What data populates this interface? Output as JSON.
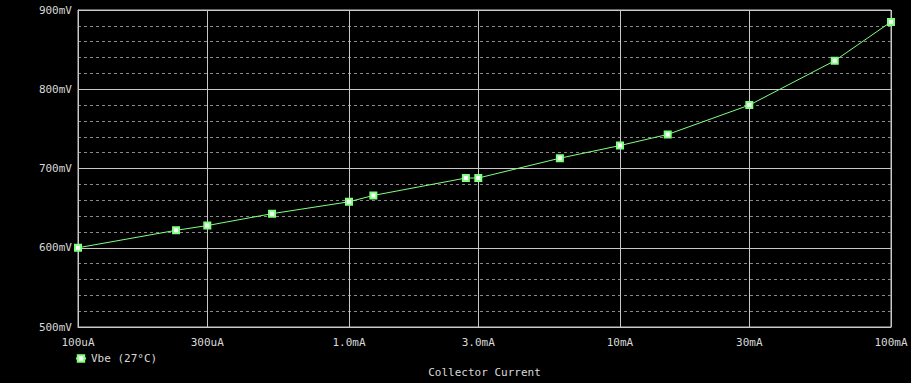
{
  "chart_data": {
    "type": "line",
    "x_label": "Collector Current",
    "x": [
      0.1,
      0.23,
      0.3,
      0.52,
      1.0,
      1.23,
      2.7,
      3.0,
      6.0,
      10,
      15,
      30,
      62,
      100
    ],
    "series": [
      {
        "name": "Vbe (27°C)",
        "color": "#80ff80",
        "marker": "square",
        "values": [
          600,
          622,
          628,
          643,
          658,
          666,
          688,
          688,
          713,
          729,
          743,
          780,
          836,
          885
        ]
      }
    ],
    "xlim": [
      0.1,
      100
    ],
    "xticks": [
      {
        "value": 0.1,
        "label": "100uA"
      },
      {
        "value": 0.3,
        "label": "300uA"
      },
      {
        "value": 1,
        "label": "1.0mA"
      },
      {
        "value": 3,
        "label": "3.0mA"
      },
      {
        "value": 10,
        "label": "10mA"
      },
      {
        "value": 30,
        "label": "30mA"
      },
      {
        "value": 100,
        "label": "100mA"
      }
    ],
    "ylim": [
      500,
      900
    ],
    "yticks": [
      {
        "value": 500,
        "label": "500mV"
      },
      {
        "value": 600,
        "label": "600mV"
      },
      {
        "value": 700,
        "label": "700mV"
      },
      {
        "value": 800,
        "label": "800mV"
      },
      {
        "value": 900,
        "label": "900mV"
      }
    ],
    "log": "x",
    "grid": true,
    "legend": "bottom-left"
  }
}
